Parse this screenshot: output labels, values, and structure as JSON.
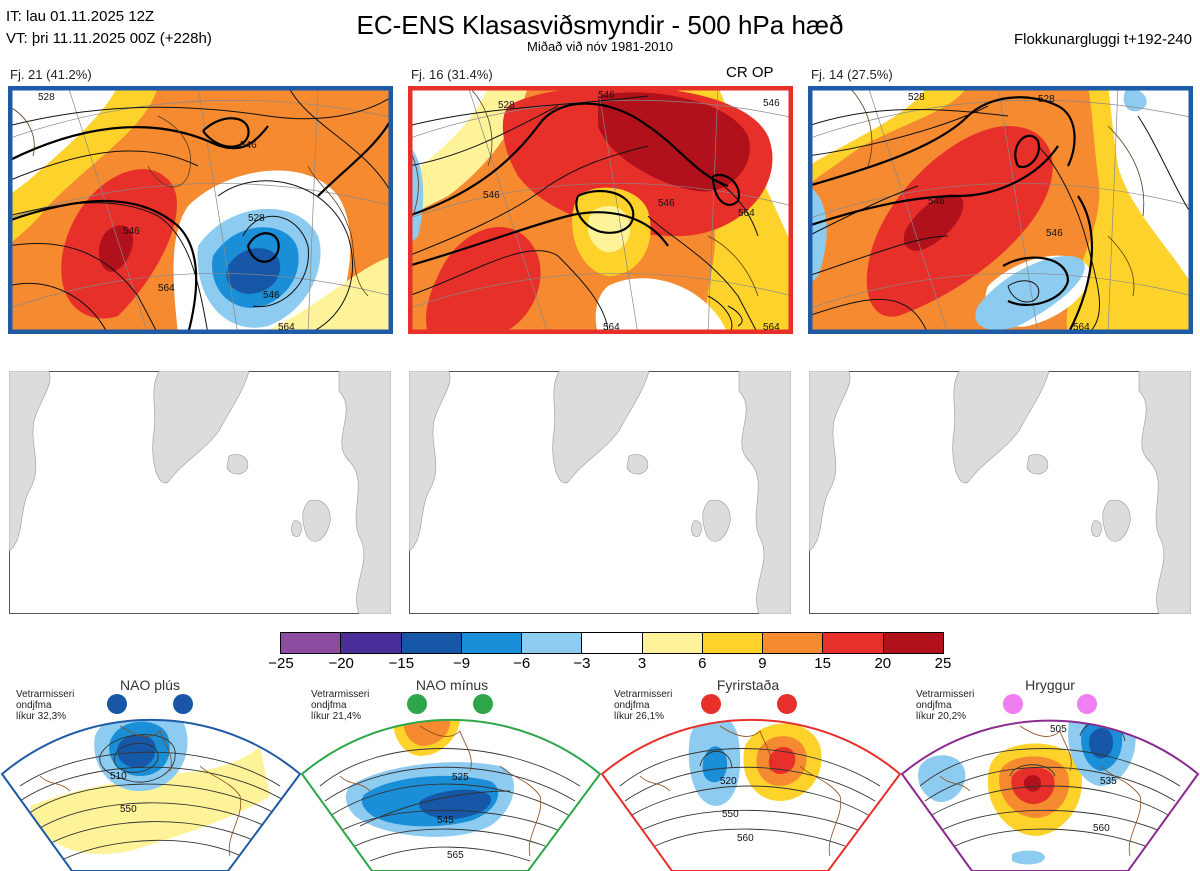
{
  "header": {
    "it_line": "IT: lau 01.11.2025 12Z",
    "vt_line": "VT: þri 11.11.2025 00Z  (+228h)",
    "title": "EC-ENS Klasasviðsmyndir - 500 hPa hæð",
    "subtitle": "Miðað við nóv 1981-2010",
    "window": "Flokkunargluggi t+192-240"
  },
  "panels": [
    {
      "label": "Fj. 21 (41.2%)",
      "border_color": "#1f5aa6",
      "contours": [
        "528",
        "546",
        "528",
        "546",
        "564",
        "546",
        "564"
      ],
      "tag": ""
    },
    {
      "label": "Fj. 16 (31.4%)",
      "border_color": "#e8302b",
      "contours": [
        "528",
        "546",
        "546",
        "546",
        "564",
        "546",
        "564",
        "564"
      ],
      "tag": "CR OP"
    },
    {
      "label": "Fj. 14 (27.5%)",
      "border_color": "#1f5aa6",
      "contours": [
        "528",
        "528",
        "546",
        "546",
        "564"
      ],
      "tag": ""
    }
  ],
  "colorbar": {
    "colors": [
      "#8c4da1",
      "#4a2f9a",
      "#1657a8",
      "#1a8fd8",
      "#8ecbf0",
      "#ffffff",
      "#fff39a",
      "#fdd22b",
      "#f58a30",
      "#e8302b",
      "#b0111a"
    ],
    "ticks": [
      "−25",
      "−20",
      "−15",
      "−9",
      "−6",
      "−3",
      "3",
      "6",
      "9",
      "15",
      "20",
      "25"
    ]
  },
  "regimes": [
    {
      "name": "NAO plús",
      "note": [
        "Vetrarmisseri",
        "ondjfma",
        "líkur 32,3%"
      ],
      "color": "#1f5aa6",
      "dot_color": "#1757a6",
      "contours": [
        "510",
        "550"
      ]
    },
    {
      "name": "NAO mínus",
      "note": [
        "Vetrarmisseri",
        "ondjfma",
        "líkur 21,4%"
      ],
      "color": "#2ea64a",
      "dot_color": "#2ea64a",
      "contours": [
        "525",
        "545",
        "565"
      ]
    },
    {
      "name": "Fyrirstaða",
      "note": [
        "Vetrarmisseri",
        "ondjfma",
        "líkur 26,1%"
      ],
      "color": "#e8302b",
      "dot_color": "#e8302b",
      "contours": [
        "520",
        "550",
        "560"
      ]
    },
    {
      "name": "Hryggur",
      "note": [
        "Vetrarmisseri",
        "ondjfma",
        "líkur 20,2%"
      ],
      "color": "#8a2b8f",
      "dot_color": "#ef7ef0",
      "contours": [
        "505",
        "535",
        "560"
      ]
    }
  ]
}
